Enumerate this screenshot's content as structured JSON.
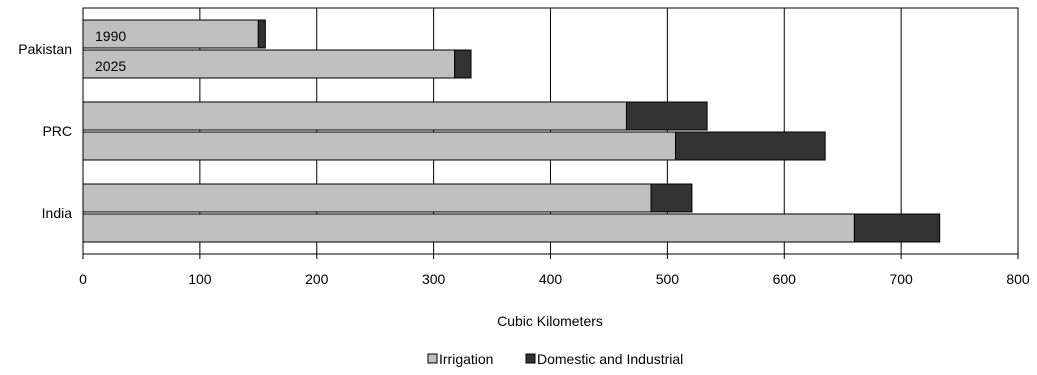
{
  "chart_data": {
    "type": "bar",
    "orientation": "horizontal",
    "stacked": true,
    "categories": [
      "Pakistan",
      "PRC",
      "India"
    ],
    "years": [
      "1990",
      "2025"
    ],
    "year_labels_shown_for": "Pakistan",
    "series": [
      {
        "name": "Irrigation",
        "color": "#c0c0c0",
        "values": {
          "Pakistan": [
            150,
            318
          ],
          "PRC": [
            465,
            507
          ],
          "India": [
            486,
            660
          ]
        }
      },
      {
        "name": "Domestic and Industrial",
        "color": "#333333",
        "values": {
          "Pakistan": [
            6,
            14
          ],
          "PRC": [
            69,
            128
          ],
          "India": [
            35,
            73
          ]
        }
      }
    ],
    "xlabel": "Cubic Kilometers",
    "ylabel": "",
    "xlim": [
      0,
      800
    ],
    "xticks": [
      0,
      100,
      200,
      300,
      400,
      500,
      600,
      700,
      800
    ],
    "grid": "vertical",
    "legend_position": "bottom"
  }
}
